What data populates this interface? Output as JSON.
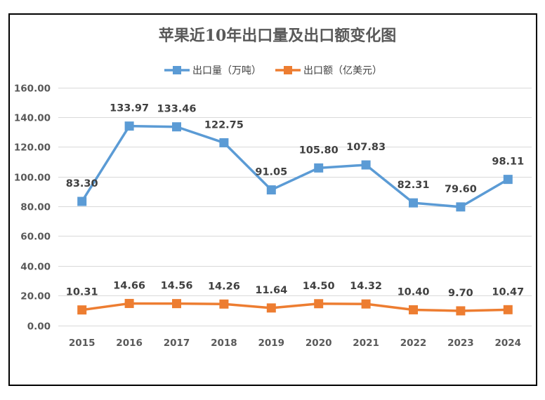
{
  "chart_data": {
    "type": "line",
    "title": "苹果近10年出口量及出口额变化图",
    "xlabel": "",
    "ylabel": "",
    "categories": [
      "2015",
      "2016",
      "2017",
      "2018",
      "2019",
      "2020",
      "2021",
      "2022",
      "2023",
      "2024"
    ],
    "ylim": [
      0,
      160
    ],
    "y_ticks": [
      "0.00",
      "20.00",
      "40.00",
      "60.00",
      "80.00",
      "100.00",
      "120.00",
      "140.00",
      "160.00"
    ],
    "y_tick_values": [
      0,
      20,
      40,
      60,
      80,
      100,
      120,
      140,
      160
    ],
    "grid": true,
    "legend_position": "top-center",
    "series": [
      {
        "name": "出口量（万吨）",
        "color": "#5B9BD5",
        "marker": "square",
        "values": [
          83.3,
          133.97,
          133.46,
          122.75,
          91.05,
          105.8,
          107.83,
          82.31,
          79.6,
          98.11
        ],
        "labels": [
          "83.30",
          "133.97",
          "133.46",
          "122.75",
          "91.05",
          "105.80",
          "107.83",
          "82.31",
          "79.60",
          "98.11"
        ]
      },
      {
        "name": "出口额（亿美元）",
        "color": "#ED7D31",
        "marker": "square",
        "values": [
          10.31,
          14.66,
          14.56,
          14.26,
          11.64,
          14.5,
          14.32,
          10.4,
          9.7,
          10.47
        ],
        "labels": [
          "10.31",
          "14.66",
          "14.56",
          "14.26",
          "11.64",
          "14.50",
          "14.32",
          "10.40",
          "9.70",
          "10.47"
        ]
      }
    ]
  }
}
